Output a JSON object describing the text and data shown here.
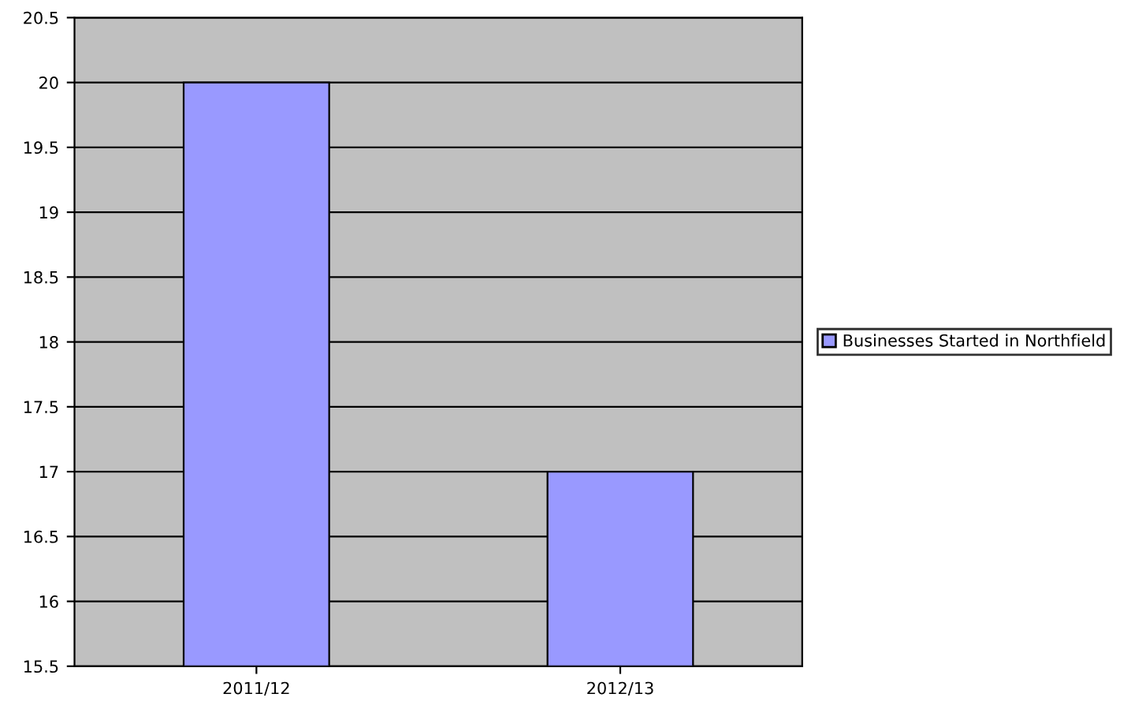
{
  "chart_data": {
    "type": "bar",
    "categories": [
      "2011/12",
      "2012/13"
    ],
    "series": [
      {
        "name": "Businesses Started in Northfield",
        "color": "#9999ff",
        "values": [
          20,
          17
        ]
      }
    ],
    "ylim": [
      15.5,
      20.5
    ],
    "yticks": [
      15.5,
      16,
      16.5,
      17,
      17.5,
      18,
      18.5,
      19,
      19.5,
      20,
      20.5
    ],
    "grid": "y",
    "legend": "right"
  }
}
